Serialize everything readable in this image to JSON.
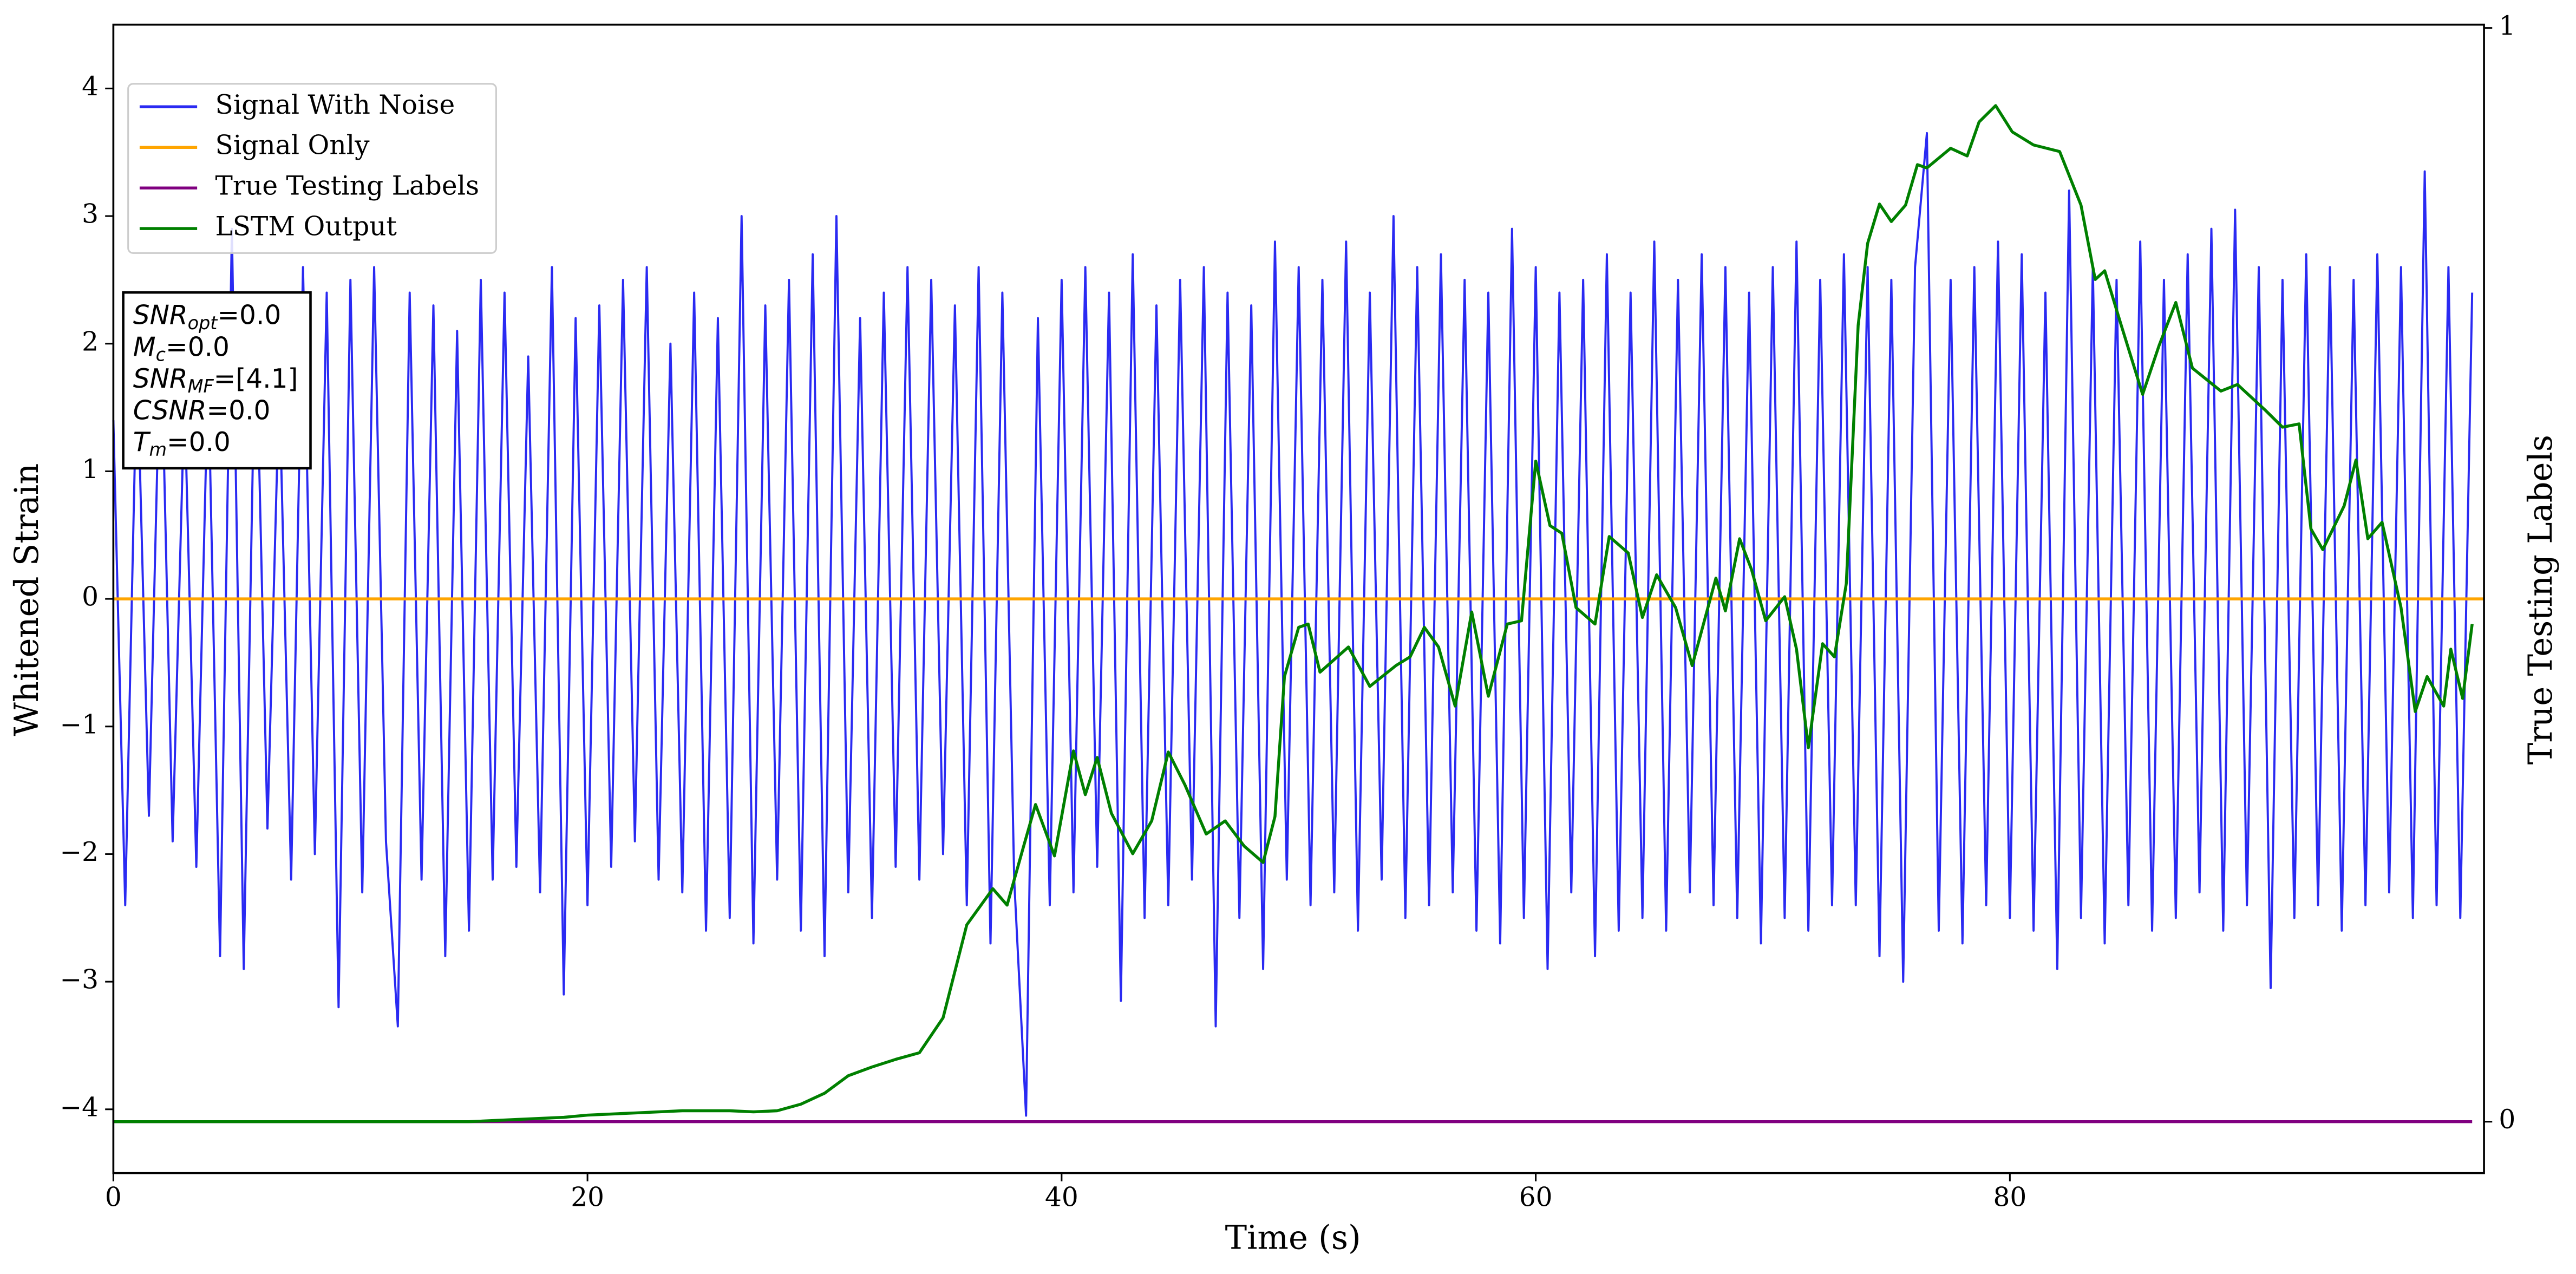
{
  "chart_data": {
    "type": "line",
    "xlabel": "Time (s)",
    "ylabel": "Whitened Strain",
    "y2label": "True Testing Labels",
    "xlim": [
      0,
      100
    ],
    "ylim": [
      -4.5,
      4.5
    ],
    "y2lim": [
      -0.047,
      1.003
    ],
    "xticks": [
      0,
      20,
      40,
      60,
      80
    ],
    "yticks": [
      {
        "value": -4,
        "label": "−4"
      },
      {
        "value": -3,
        "label": "−3"
      },
      {
        "value": -2,
        "label": "−2"
      },
      {
        "value": -1,
        "label": "−1"
      },
      0,
      1,
      2,
      3,
      4
    ],
    "y2ticks": [
      0,
      1
    ],
    "legend": "upper left",
    "series": [
      {
        "name": "Signal With Noise",
        "color": "#2a2af2",
        "x": [
          0,
          0.5,
          1,
          1.5,
          2,
          2.5,
          3,
          3.5,
          4,
          4.5,
          5,
          5.5,
          6,
          6.5,
          7,
          7.5,
          8,
          8.5,
          9,
          9.5,
          10,
          10.5,
          11,
          11.5,
          12,
          12.5,
          13,
          13.5,
          14,
          14.5,
          15,
          15.5,
          16,
          16.5,
          17,
          17.5,
          18,
          18.5,
          19,
          19.5,
          20,
          20.5,
          21,
          21.5,
          22,
          22.5,
          23,
          23.5,
          24,
          24.5,
          25,
          25.5,
          26,
          26.5,
          27,
          27.5,
          28,
          28.5,
          29,
          29.5,
          30,
          30.5,
          31,
          31.5,
          32,
          32.5,
          33,
          33.5,
          34,
          34.5,
          35,
          35.5,
          36,
          36.5,
          37,
          37.5,
          38,
          38.5,
          39,
          39.5,
          40,
          40.5,
          41,
          41.5,
          42,
          42.5,
          43,
          43.5,
          44,
          44.5,
          45,
          45.5,
          46,
          46.5,
          47,
          47.5,
          48,
          48.5,
          49,
          49.5,
          50,
          50.5,
          51,
          51.5,
          52,
          52.5,
          53,
          53.5,
          54,
          54.5,
          55,
          55.5,
          56,
          56.5,
          57,
          57.5,
          58,
          58.5,
          59,
          59.5,
          60,
          60.5,
          61,
          61.5,
          62,
          62.5,
          63,
          63.5,
          64,
          64.5,
          65,
          65.5,
          66,
          66.5,
          67,
          67.5,
          68,
          68.5,
          69,
          69.5,
          70,
          70.5,
          71,
          71.5,
          72,
          72.5,
          73,
          73.5,
          74,
          74.5,
          75,
          75.5,
          76,
          76.5,
          77,
          77.5,
          78,
          78.5,
          79,
          79.5,
          80,
          80.5,
          81,
          81.5,
          82,
          82.5,
          83,
          83.5,
          84,
          84.5,
          85,
          85.5,
          86,
          86.5,
          87,
          87.5,
          88,
          88.5,
          89,
          89.5,
          90,
          90.5,
          91,
          91.5,
          92,
          92.5,
          93,
          93.5,
          94,
          94.5,
          95,
          95.5,
          96,
          96.5,
          97,
          97.5,
          98,
          98.5,
          99,
          99.5
        ],
        "values": [
          1.4,
          -2.4,
          1.9,
          -1.7,
          2.2,
          -1.9,
          1.6,
          -2.1,
          1.8,
          -2.8,
          2.9,
          -2.9,
          2.3,
          -1.8,
          1.7,
          -2.2,
          2.6,
          -2.0,
          2.4,
          -3.2,
          2.5,
          -2.3,
          2.6,
          -1.9,
          -3.35,
          2.4,
          -2.2,
          2.3,
          -2.8,
          2.1,
          -2.6,
          2.5,
          -2.2,
          2.4,
          -2.1,
          1.9,
          -2.3,
          2.6,
          -3.1,
          2.2,
          -2.4,
          2.3,
          -2.1,
          2.5,
          -1.9,
          2.6,
          -2.2,
          2.0,
          -2.3,
          2.4,
          -2.6,
          2.2,
          -2.5,
          3.0,
          -2.7,
          2.3,
          -2.2,
          2.5,
          -2.6,
          2.7,
          -2.8,
          3.0,
          -2.3,
          2.2,
          -2.5,
          2.4,
          -2.1,
          2.6,
          -2.2,
          2.5,
          -2.0,
          2.3,
          -2.4,
          2.6,
          -2.7,
          2.4,
          -2.2,
          -4.05,
          2.2,
          -2.4,
          2.5,
          -2.3,
          2.6,
          -2.1,
          2.4,
          -3.15,
          2.7,
          -2.5,
          2.3,
          -2.4,
          2.5,
          -2.2,
          2.6,
          -3.35,
          2.4,
          -2.5,
          2.3,
          -2.9,
          2.8,
          -2.2,
          2.6,
          -2.4,
          2.5,
          -2.3,
          2.8,
          -2.6,
          2.4,
          -2.2,
          3.0,
          -2.5,
          2.6,
          -2.4,
          2.7,
          -2.3,
          2.5,
          -2.6,
          2.4,
          -2.7,
          2.9,
          -2.5,
          2.6,
          -2.9,
          2.4,
          -2.3,
          2.5,
          -2.8,
          2.7,
          -2.6,
          2.4,
          -2.5,
          2.8,
          -2.6,
          2.5,
          -2.3,
          2.7,
          -2.4,
          2.6,
          -2.5,
          2.4,
          -2.7,
          2.6,
          -2.5,
          2.8,
          -2.6,
          2.5,
          -2.4,
          2.7,
          -2.4,
          2.6,
          -2.8,
          2.5,
          -3.0,
          2.6,
          3.65,
          -2.6,
          2.5,
          -2.7,
          2.6,
          -2.4,
          2.8,
          -2.5,
          2.7,
          -2.6,
          2.4,
          -2.9,
          3.2,
          -2.5,
          2.6,
          -2.7,
          2.5,
          -2.4,
          2.8,
          -2.6,
          2.5,
          -2.5,
          2.7,
          -2.3,
          2.9,
          -2.6,
          3.05,
          -2.4,
          2.6,
          -3.05,
          2.5,
          -2.5,
          2.7,
          -2.4,
          2.6,
          -2.6,
          2.5,
          -2.4,
          2.7,
          -2.3,
          2.6,
          -2.5,
          3.35,
          -2.4,
          2.6,
          -2.5,
          2.4
        ]
      },
      {
        "name": "Signal Only",
        "color": "orange",
        "x": [
          0,
          100
        ],
        "values": [
          0,
          0
        ]
      },
      {
        "name": "True Testing Labels",
        "color": "purple",
        "axis": "y2",
        "x": [
          0,
          99.5
        ],
        "values": [
          0,
          0
        ]
      },
      {
        "name": "LSTM Output",
        "color": "green",
        "axis": "y2",
        "x": [
          0,
          5,
          10,
          15,
          17,
          19,
          20,
          22,
          24,
          26,
          27,
          28,
          29,
          30,
          31,
          32,
          33,
          34,
          35,
          36,
          37.1,
          37.7,
          38.4,
          38.9,
          39.7,
          40.5,
          41.0,
          41.5,
          42.1,
          43.0,
          43.8,
          44.5,
          45.2,
          46.1,
          46.9,
          47.7,
          48.5,
          49.0,
          49.4,
          50.0,
          50.4,
          50.9,
          52.1,
          53.0,
          54.1,
          54.7,
          55.3,
          55.9,
          56.6,
          57.3,
          58.0,
          58.8,
          59.4,
          60.0,
          60.6,
          61.1,
          61.7,
          62.5,
          63.1,
          63.9,
          64.5,
          65.1,
          65.9,
          66.6,
          67.6,
          68.0,
          68.6,
          69.1,
          69.7,
          70.5,
          71.0,
          71.5,
          72.1,
          72.6,
          73.1,
          73.6,
          74.0,
          74.5,
          75.0,
          75.6,
          76.1,
          76.5,
          77.5,
          78.2,
          78.7,
          79.4,
          80.1,
          81.0,
          82.1,
          83.0,
          83.6,
          84.0,
          84.7,
          85.6,
          86.3,
          87.0,
          87.7,
          88.9,
          89.6,
          90.8,
          91.5,
          92.2,
          92.7,
          93.2,
          94.1,
          94.6,
          95.1,
          95.7,
          96.5,
          97.1,
          97.6,
          98.3,
          98.6,
          99.1,
          99.5
        ],
        "values": [
          0,
          0,
          0,
          0,
          0.002,
          0.004,
          0.006,
          0.008,
          0.01,
          0.01,
          0.009,
          0.01,
          0.016,
          0.026,
          0.042,
          0.05,
          0.057,
          0.063,
          0.095,
          0.18,
          0.213,
          0.198,
          0.252,
          0.29,
          0.243,
          0.339,
          0.299,
          0.333,
          0.282,
          0.245,
          0.275,
          0.338,
          0.308,
          0.263,
          0.275,
          0.252,
          0.237,
          0.279,
          0.407,
          0.452,
          0.455,
          0.411,
          0.434,
          0.398,
          0.417,
          0.425,
          0.452,
          0.434,
          0.38,
          0.466,
          0.389,
          0.455,
          0.458,
          0.604,
          0.545,
          0.538,
          0.47,
          0.455,
          0.535,
          0.52,
          0.461,
          0.5,
          0.47,
          0.417,
          0.497,
          0.467,
          0.533,
          0.505,
          0.458,
          0.48,
          0.432,
          0.342,
          0.437,
          0.425,
          0.492,
          0.728,
          0.803,
          0.839,
          0.823,
          0.838,
          0.875,
          0.872,
          0.89,
          0.883,
          0.914,
          0.929,
          0.905,
          0.893,
          0.887,
          0.838,
          0.77,
          0.778,
          0.728,
          0.665,
          0.71,
          0.749,
          0.689,
          0.668,
          0.674,
          0.65,
          0.635,
          0.638,
          0.542,
          0.523,
          0.563,
          0.605,
          0.533,
          0.548,
          0.47,
          0.375,
          0.407,
          0.38,
          0.432,
          0.387,
          0.455
        ]
      }
    ],
    "annotation": [
      {
        "label": "SNR",
        "subscript": "opt",
        "text": "=0.0"
      },
      {
        "label": "M",
        "subscript": "c",
        "text": "=0.0"
      },
      {
        "label": "SNR",
        "subscript": "MF",
        "text": "=[4.1]"
      },
      {
        "label": "CSNR",
        "text": "=0.0"
      },
      {
        "label": "T",
        "subscript": "m",
        "text": "=0.0"
      }
    ]
  }
}
